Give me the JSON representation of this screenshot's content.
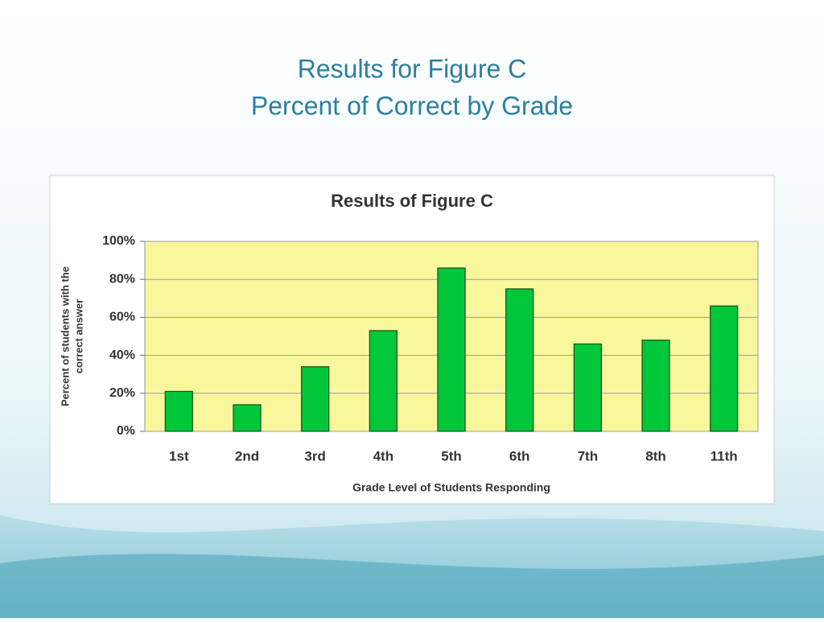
{
  "slide": {
    "title": [
      "Results for Figure C",
      "Percent of Correct by Grade"
    ]
  },
  "chart_data": {
    "type": "bar",
    "title": "Results of Figure C",
    "ylabel": [
      "Percent of students with the",
      "correct answer"
    ],
    "xlabel": "Grade Level of Students Responding",
    "categories": [
      "1st",
      "2nd",
      "3rd",
      "4th",
      "5th",
      "6th",
      "7th",
      "8th",
      "11th"
    ],
    "values": [
      21,
      14,
      34,
      53,
      86,
      75,
      46,
      48,
      66
    ],
    "color": "#00c73a",
    "ylim": [
      0,
      100
    ],
    "yticks": [
      {
        "value": 0,
        "label": "0%"
      },
      {
        "value": 20,
        "label": "20%"
      },
      {
        "value": 40,
        "label": "40%"
      },
      {
        "value": 60,
        "label": "60%"
      },
      {
        "value": 80,
        "label": "80%"
      },
      {
        "value": 100,
        "label": "100%"
      }
    ],
    "grid": true
  }
}
